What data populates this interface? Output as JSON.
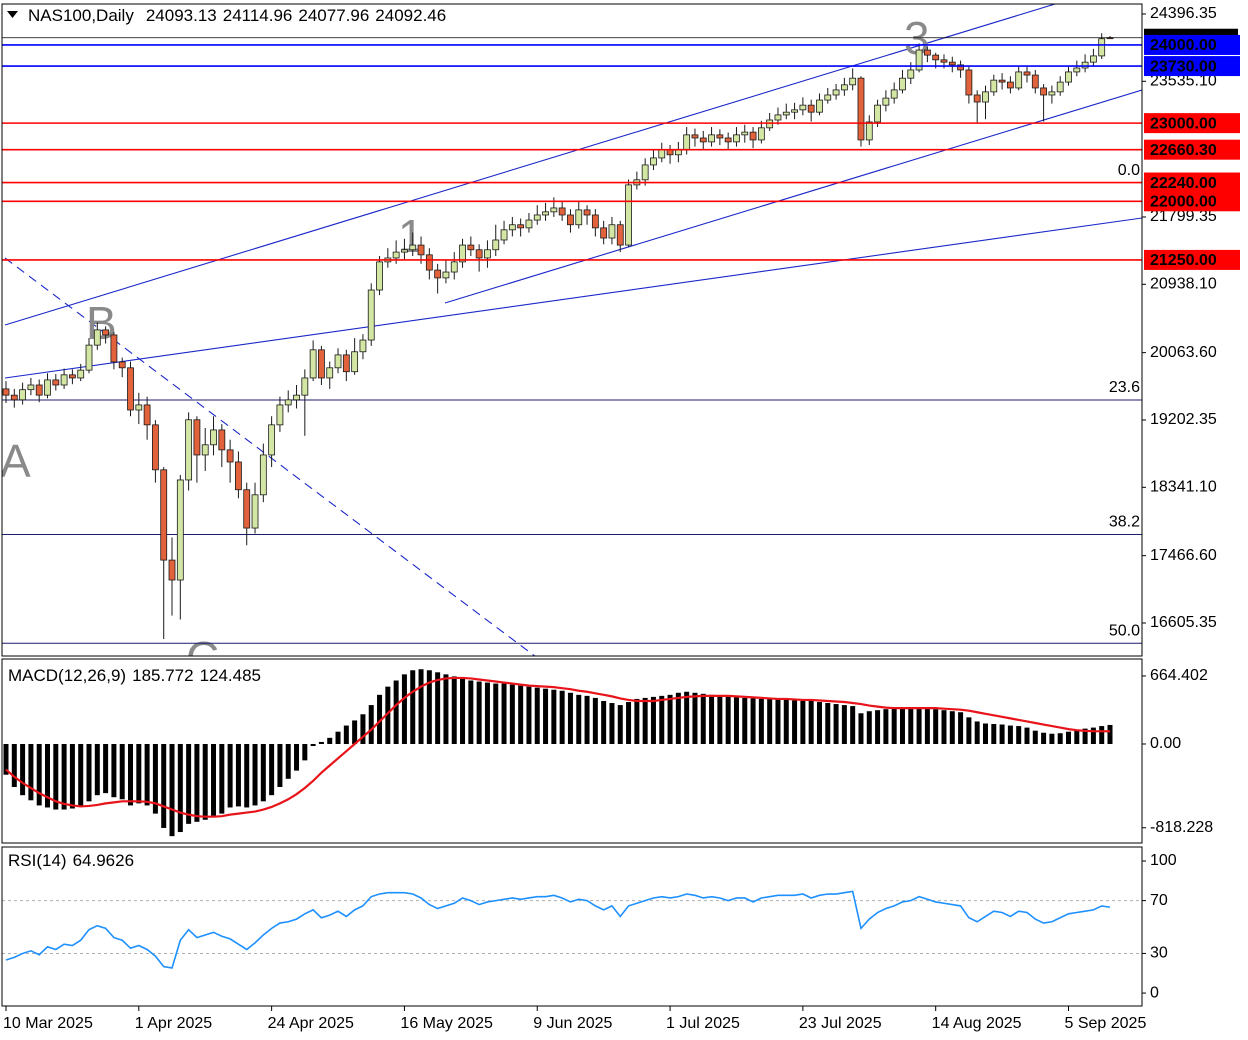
{
  "chart_data": [
    {
      "type": "candlestick",
      "title": "NAS100,Daily",
      "categories": [
        "10 Mar 2025",
        null,
        null,
        null,
        null,
        null,
        null,
        null,
        null,
        null,
        null,
        null,
        null,
        null,
        null,
        null,
        "1 Apr 2025",
        null,
        null,
        null,
        null,
        null,
        null,
        null,
        null,
        null,
        null,
        null,
        null,
        null,
        null,
        null,
        "24 Apr 2025",
        null,
        null,
        null,
        null,
        null,
        null,
        null,
        null,
        null,
        null,
        null,
        null,
        null,
        null,
        null,
        "16 May 2025",
        null,
        null,
        null,
        null,
        null,
        null,
        null,
        null,
        null,
        null,
        null,
        null,
        null,
        null,
        null,
        "9 Jun 2025",
        null,
        null,
        null,
        null,
        null,
        null,
        null,
        null,
        null,
        null,
        null,
        null,
        null,
        null,
        null,
        "1 Jul 2025",
        null,
        null,
        null,
        null,
        null,
        null,
        null,
        null,
        null,
        null,
        null,
        null,
        null,
        null,
        null,
        "23 Jul 2025",
        null,
        null,
        null,
        null,
        null,
        null,
        null,
        null,
        null,
        null,
        null,
        null,
        null,
        null,
        null,
        "14 Aug 2025",
        null,
        null,
        null,
        null,
        null,
        null,
        null,
        null,
        null,
        null,
        null,
        null,
        null,
        null,
        null,
        "5 Sep 2025",
        null,
        null,
        null,
        null,
        null
      ],
      "open": [
        19600,
        19520,
        19460,
        19590,
        19650,
        19520,
        19715,
        19650,
        19780,
        19740,
        19840,
        20160,
        20355,
        20290,
        19945,
        19870,
        19330,
        19395,
        19140,
        18565,
        17410,
        17155,
        18435,
        19205,
        18755,
        18885,
        19075,
        18820,
        18665,
        18310,
        17820,
        18245,
        18755,
        19140,
        19395,
        19460,
        19520,
        19740,
        20100,
        19740,
        19870,
        20035,
        19820,
        20075,
        20225,
        20865,
        21225,
        21275,
        21350,
        21380,
        21440,
        21315,
        21120,
        21020,
        21095,
        21225,
        21440,
        21380,
        21275,
        21380,
        21505,
        21635,
        21700,
        21660,
        21760,
        21825,
        21865,
        21915,
        21825,
        21700,
        21890,
        21825,
        21660,
        21530,
        21700,
        21440,
        22210,
        22275,
        22465,
        22555,
        22655,
        22595,
        22655,
        22850,
        22810,
        22760,
        22850,
        22810,
        22760,
        22850,
        22885,
        22785,
        22940,
        23040,
        23105,
        23140,
        23170,
        23230,
        23140,
        23295,
        23360,
        23425,
        23490,
        23575,
        22785,
        23015,
        23230,
        23320,
        23425,
        23575,
        23680,
        23935,
        23870,
        23810,
        23780,
        23745,
        23680,
        23360,
        23270,
        23400,
        23550,
        23525,
        23450,
        23655,
        23615,
        23450,
        23360,
        23400,
        23525,
        23655,
        23705,
        23780,
        23860,
        24093.13
      ],
      "high": [
        19700,
        19600,
        19680,
        19740,
        19720,
        19800,
        19790,
        19860,
        19850,
        19920,
        20250,
        20450,
        20400,
        20330,
        20000,
        19950,
        19550,
        19500,
        19200,
        18600,
        17700,
        18500,
        19300,
        19250,
        19100,
        19250,
        19150,
        18950,
        18800,
        18400,
        18400,
        18900,
        19250,
        19500,
        19580,
        19650,
        19850,
        20220,
        20150,
        19950,
        20120,
        20100,
        20250,
        20300,
        20950,
        21300,
        21400,
        21500,
        21520,
        21600,
        21550,
        21400,
        21200,
        21250,
        21350,
        21520,
        21550,
        21450,
        21500,
        21700,
        21750,
        21800,
        21780,
        21850,
        21950,
        21980,
        22050,
        22000,
        21900,
        22000,
        21950,
        21900,
        21750,
        21800,
        21750,
        22280,
        22380,
        22550,
        22650,
        22750,
        22720,
        22760,
        22950,
        22930,
        22900,
        22950,
        22920,
        22880,
        22950,
        22980,
        22950,
        23030,
        23130,
        23200,
        23250,
        23260,
        23330,
        23300,
        23380,
        23450,
        23500,
        23580,
        23700,
        23600,
        23100,
        23300,
        23420,
        23520,
        23680,
        23780,
        24020,
        23980,
        23900,
        23880,
        23850,
        23800,
        23720,
        23420,
        23480,
        23620,
        23640,
        23600,
        23720,
        23720,
        23680,
        23500,
        23480,
        23600,
        23720,
        23800,
        23880,
        23950,
        24150,
        24114.96
      ],
      "low": [
        19420,
        19360,
        19400,
        19520,
        19430,
        19480,
        19580,
        19600,
        19660,
        19700,
        19800,
        20100,
        20180,
        19850,
        19750,
        19250,
        19150,
        18950,
        18400,
        16400,
        16700,
        16650,
        18300,
        18400,
        18550,
        18750,
        18600,
        18400,
        18200,
        17600,
        17750,
        18150,
        18600,
        19050,
        19300,
        19350,
        19000,
        19700,
        19650,
        19600,
        19800,
        19700,
        19780,
        19980,
        20150,
        20800,
        21150,
        21200,
        21250,
        21300,
        21200,
        21000,
        20820,
        20950,
        21000,
        21150,
        21300,
        21100,
        21150,
        21300,
        21450,
        21550,
        21550,
        21600,
        21700,
        21750,
        21800,
        21750,
        21600,
        21650,
        21700,
        21550,
        21450,
        21450,
        21350,
        21420,
        22150,
        22200,
        22400,
        22500,
        22480,
        22500,
        22600,
        22700,
        22650,
        22700,
        22720,
        22650,
        22700,
        22750,
        22680,
        22740,
        22900,
        22980,
        23050,
        23050,
        23100,
        23020,
        23100,
        23250,
        23300,
        23350,
        23420,
        22700,
        22720,
        22950,
        23150,
        23250,
        23380,
        23500,
        23650,
        23780,
        23700,
        23700,
        23650,
        23580,
        23250,
        23000,
        23050,
        23350,
        23430,
        23380,
        23420,
        23520,
        23380,
        23020,
        23250,
        23350,
        23480,
        23600,
        23650,
        23720,
        23820,
        24077.96
      ],
      "close": [
        19520,
        19460,
        19590,
        19650,
        19520,
        19715,
        19650,
        19780,
        19740,
        19840,
        20160,
        20355,
        20290,
        19945,
        19870,
        19330,
        19395,
        19140,
        18565,
        17410,
        17155,
        18435,
        19205,
        18755,
        18885,
        19075,
        18820,
        18665,
        18310,
        17820,
        18245,
        18755,
        19140,
        19395,
        19460,
        19520,
        19740,
        20100,
        19740,
        19870,
        20035,
        19820,
        20075,
        20225,
        20865,
        21225,
        21275,
        21350,
        21380,
        21440,
        21315,
        21120,
        21020,
        21095,
        21225,
        21440,
        21380,
        21275,
        21380,
        21505,
        21635,
        21700,
        21660,
        21760,
        21825,
        21865,
        21915,
        21825,
        21700,
        21890,
        21825,
        21660,
        21530,
        21700,
        21440,
        22210,
        22275,
        22465,
        22555,
        22655,
        22595,
        22655,
        22850,
        22810,
        22760,
        22850,
        22810,
        22760,
        22850,
        22885,
        22785,
        22940,
        23040,
        23105,
        23140,
        23170,
        23230,
        23140,
        23295,
        23360,
        23425,
        23490,
        23575,
        22785,
        23015,
        23230,
        23320,
        23425,
        23575,
        23680,
        23935,
        23870,
        23810,
        23780,
        23745,
        23680,
        23360,
        23270,
        23400,
        23550,
        23525,
        23450,
        23655,
        23615,
        23450,
        23360,
        23400,
        23525,
        23655,
        23705,
        23780,
        23860,
        24080,
        24092.46
      ],
      "up_color": "#d3e6a4",
      "down_color": "#e2633b",
      "wick_color": "#1a1a1a",
      "price_line_color": "#000000",
      "ylim": [
        16183,
        24524
      ],
      "yticks": [
        24396.35,
        {
          "value": 23535.1,
          "label": "23535.10"
        },
        21799.35,
        {
          "value": 20938.1,
          "label": "20938.10"
        },
        {
          "value": 20063.6,
          "label": "20063.60"
        },
        19202.35,
        {
          "value": 18341.1,
          "label": "18341.10"
        },
        {
          "value": 17466.6,
          "label": "17466.60"
        },
        16605.35
      ],
      "levels": [
        {
          "value": 24000,
          "label": "24000.00",
          "color": "#0000ff"
        },
        {
          "value": 23730,
          "label": "23730.00",
          "color": "#0000ff"
        },
        {
          "value": 23000,
          "label": "23000.00",
          "color": "#ff0000"
        },
        {
          "value": 22660.3,
          "label": "22660.30",
          "color": "#ff0000"
        },
        {
          "value": 22240,
          "label": "22240.00",
          "color": "#ff0000"
        },
        {
          "value": 22000,
          "label": "22000.00",
          "color": "#ff0000"
        },
        {
          "value": 21250,
          "label": "21250.00",
          "color": "#ff0000"
        }
      ],
      "fib_levels": [
        {
          "value": 22240,
          "label": "0.0"
        },
        {
          "value": 19458,
          "label": "23.6"
        },
        {
          "value": 17737,
          "label": "38.2"
        },
        {
          "value": 16346,
          "label": "50.0"
        }
      ],
      "fib_color": "#1c1c6c",
      "wave_labels": [
        "A",
        "B",
        "C",
        "1",
        "3"
      ]
    },
    {
      "type": "macd",
      "title": "MACD(12,26,9)",
      "histogram": [
        -300,
        -420,
        -500,
        -550,
        -600,
        -620,
        -640,
        -640,
        -630,
        -610,
        -560,
        -500,
        -480,
        -520,
        -540,
        -600,
        -580,
        -600,
        -680,
        -820,
        -900,
        -860,
        -780,
        -760,
        -740,
        -700,
        -680,
        -620,
        -610,
        -620,
        -600,
        -560,
        -500,
        -420,
        -340,
        -260,
        -160,
        -20,
        20,
        60,
        120,
        180,
        230,
        290,
        380,
        480,
        560,
        620,
        680,
        720,
        730,
        720,
        700,
        680,
        660,
        640,
        620,
        610,
        600,
        590,
        590,
        580,
        570,
        560,
        550,
        540,
        530,
        520,
        500,
        480,
        470,
        450,
        420,
        400,
        380,
        410,
        440,
        450,
        460,
        470,
        480,
        500,
        510,
        500,
        490,
        480,
        470,
        460,
        455,
        450,
        445,
        440,
        440,
        435,
        430,
        425,
        420,
        420,
        410,
        400,
        390,
        380,
        370,
        300,
        320,
        330,
        340,
        350,
        360,
        350,
        360,
        350,
        340,
        330,
        320,
        310,
        260,
        220,
        200,
        195,
        190,
        180,
        175,
        160,
        130,
        110,
        100,
        105,
        120,
        140,
        150,
        160,
        175,
        185.772
      ],
      "signal": [
        -250,
        -320,
        -380,
        -430,
        -480,
        -520,
        -560,
        -585,
        -600,
        -610,
        -605,
        -595,
        -580,
        -570,
        -560,
        -560,
        -560,
        -565,
        -580,
        -610,
        -640,
        -670,
        -690,
        -705,
        -710,
        -710,
        -705,
        -690,
        -680,
        -670,
        -660,
        -640,
        -615,
        -580,
        -540,
        -490,
        -430,
        -360,
        -280,
        -210,
        -140,
        -70,
        0,
        70,
        140,
        220,
        300,
        380,
        450,
        510,
        560,
        600,
        625,
        640,
        645,
        645,
        640,
        630,
        620,
        610,
        600,
        590,
        580,
        570,
        565,
        560,
        555,
        545,
        535,
        520,
        510,
        495,
        480,
        465,
        445,
        430,
        420,
        420,
        420,
        430,
        440,
        450,
        460,
        465,
        470,
        470,
        470,
        470,
        465,
        460,
        455,
        450,
        445,
        440,
        440,
        435,
        430,
        430,
        425,
        420,
        415,
        410,
        400,
        390,
        375,
        365,
        355,
        350,
        350,
        350,
        350,
        350,
        350,
        345,
        340,
        335,
        325,
        310,
        295,
        280,
        265,
        250,
        235,
        220,
        205,
        190,
        175,
        160,
        145,
        135,
        128,
        125,
        124,
        124.485
      ],
      "histogram_color": "#000000",
      "signal_color": "#e8141a",
      "ylim": [
        -967,
        830
      ],
      "yticks": [
        664.402,
        {
          "value": 0,
          "label": "0.00"
        },
        -818.228
      ]
    },
    {
      "type": "line",
      "title": "RSI(14)",
      "values": [
        25,
        27,
        30,
        32,
        29,
        35,
        33,
        37,
        36,
        40,
        48,
        51,
        49,
        42,
        40,
        34,
        36,
        33,
        28,
        20,
        19,
        40,
        48,
        42,
        44,
        46,
        43,
        41,
        37,
        33,
        38,
        44,
        49,
        53,
        54,
        56,
        60,
        63,
        57,
        59,
        62,
        58,
        63,
        66,
        73,
        75,
        76,
        76,
        76,
        75,
        72,
        67,
        64,
        66,
        68,
        72,
        70,
        67,
        69,
        70,
        71,
        72,
        71,
        72,
        73,
        73,
        74,
        72,
        69,
        71,
        70,
        66,
        63,
        66,
        58,
        66,
        68,
        70,
        72,
        73,
        72,
        73,
        75,
        74,
        72,
        73,
        72,
        70,
        72,
        72,
        69,
        72,
        73,
        74,
        74,
        74,
        75,
        72,
        74,
        75,
        75,
        76,
        77,
        49,
        56,
        61,
        64,
        66,
        69,
        70,
        73,
        71,
        69,
        68,
        67,
        66,
        57,
        54,
        58,
        62,
        61,
        58,
        62,
        61,
        56,
        53,
        54,
        57,
        60,
        61,
        62,
        63,
        66,
        64.9626
      ],
      "color": "#1e90ff",
      "ylim": [
        -9.8,
        110.6
      ],
      "yticks": [
        100,
        70,
        30,
        0
      ],
      "levels": [
        70,
        30
      ]
    }
  ]
}
